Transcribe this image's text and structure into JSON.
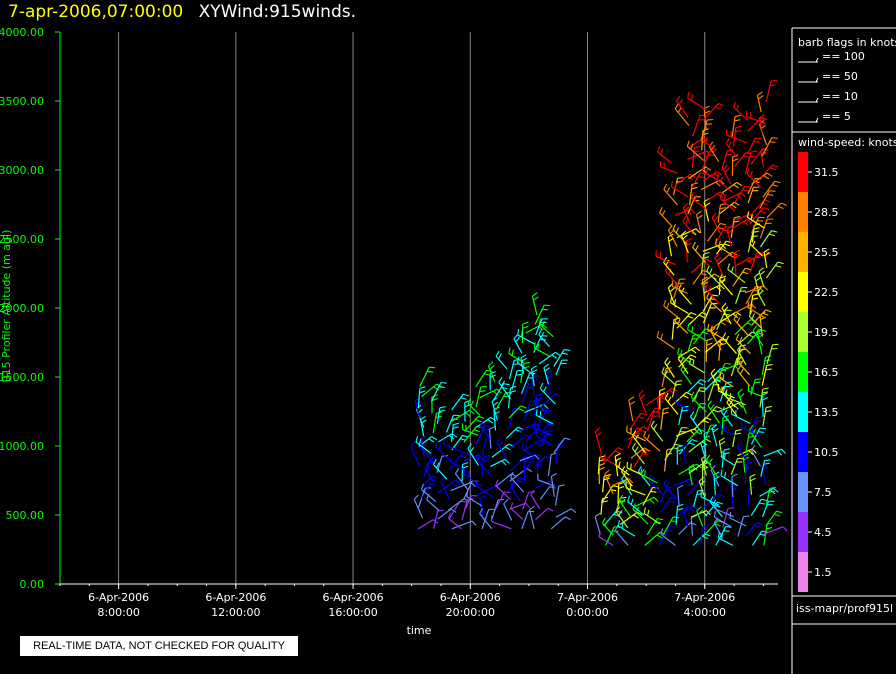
{
  "header": {
    "datetime": "7-apr-2006,07:00:00",
    "title": "XYWind:915winds."
  },
  "footer": {
    "warning": "REAL-TIME DATA, NOT CHECKED FOR QUALITY",
    "source": "iss-mapr/prof915l"
  },
  "legend": {
    "barb_title": "barb flags in knots",
    "barbs": [
      {
        "label": "== 100",
        "kts": 100
      },
      {
        "label": "== 50",
        "kts": 50
      },
      {
        "label": "== 10",
        "kts": 10
      },
      {
        "label": "== 5",
        "kts": 5
      }
    ],
    "speed_title": "wind-speed: knots",
    "speed_bins": [
      {
        "label": "31.5",
        "color": "#ff0000"
      },
      {
        "label": "28.5",
        "color": "#ff8000"
      },
      {
        "label": "25.5",
        "color": "#ffb000"
      },
      {
        "label": "22.5",
        "color": "#ffff00"
      },
      {
        "label": "19.5",
        "color": "#a8ff30"
      },
      {
        "label": "16.5",
        "color": "#00ff00"
      },
      {
        "label": "13.5",
        "color": "#00ffff"
      },
      {
        "label": "10.5",
        "color": "#0000ff"
      },
      {
        "label": "7.5",
        "color": "#6890ff"
      },
      {
        "label": "4.5",
        "color": "#9a30ff"
      },
      {
        "label": "1.5",
        "color": "#ee82ee"
      }
    ]
  },
  "chart_data": {
    "type": "scatter",
    "xlabel": "time",
    "ylabel": "915 Profiler Altitude (m agl)",
    "ylim": [
      0,
      4000
    ],
    "yticks": [
      "0.00",
      "500.00",
      "1000.00",
      "1500.00",
      "2000.00",
      "2500.00",
      "3000.00",
      "3500.00",
      "4000.00"
    ],
    "xlim_hours": [
      6.0,
      30.5
    ],
    "xticks": [
      {
        "hour": 8,
        "date": "6-Apr-2006",
        "time": "8:00:00"
      },
      {
        "hour": 12,
        "date": "6-Apr-2006",
        "time": "12:00:00"
      },
      {
        "hour": 16,
        "date": "6-Apr-2006",
        "time": "16:00:00"
      },
      {
        "hour": 20,
        "date": "6-Apr-2006",
        "time": "20:00:00"
      },
      {
        "hour": 24,
        "date": "7-Apr-2006",
        "time": "0:00:00"
      },
      {
        "hour": 28,
        "date": "7-Apr-2006",
        "time": "4:00:00"
      }
    ],
    "grid": "vertical",
    "series": [
      {
        "profiles_hours": [
          18.3,
          18.8,
          19.3,
          19.8,
          20.3,
          20.8,
          21.3,
          21.8,
          22.3,
          22.8
        ],
        "alt_min": 400,
        "alt_max": [
          1450,
          1400,
          1300,
          1250,
          1450,
          1500,
          1600,
          1900,
          2000,
          1800
        ],
        "speed_range": [
          3,
          16
        ]
      },
      {
        "profiles_hours": [
          24.5,
          25.0,
          25.5,
          26.0,
          26.5,
          27.0,
          27.5,
          28.0,
          28.5,
          29.0,
          29.5,
          30.0
        ],
        "alt_min": 280,
        "alt_max": [
          1000,
          900,
          1200,
          1300,
          1500,
          3100,
          3400,
          3500,
          3200,
          3300,
          3400,
          3500
        ],
        "speed_range": [
          4,
          33
        ]
      }
    ]
  }
}
